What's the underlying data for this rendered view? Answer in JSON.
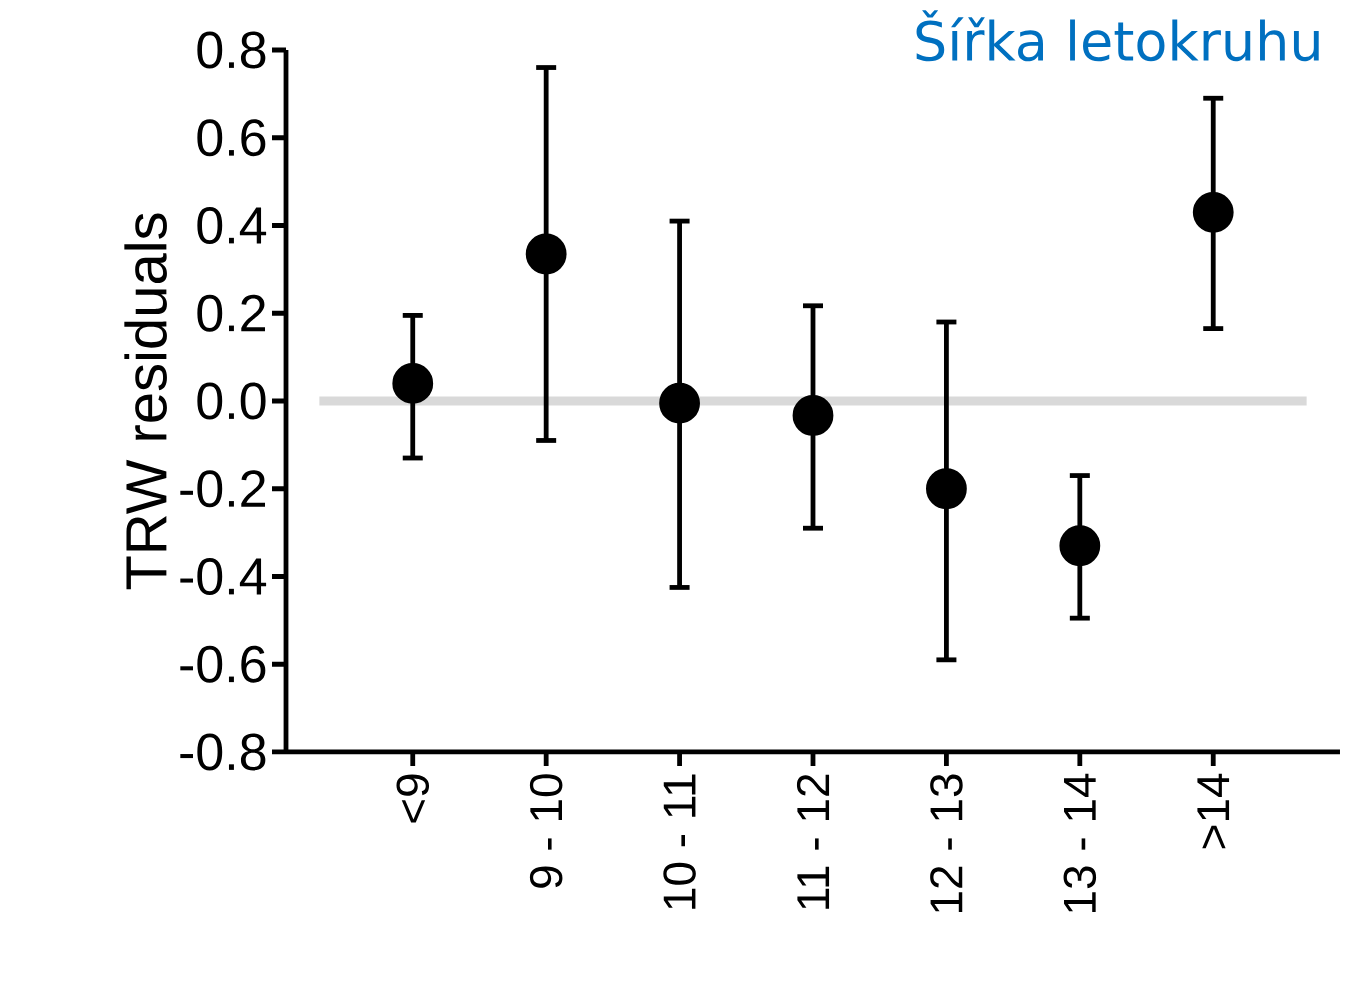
{
  "chart_data": {
    "type": "scatter",
    "title": "Šířka letokruhu",
    "ylabel": "TRW residuals",
    "categories": [
      "<9",
      "9 - 10",
      "10 - 11",
      "11 - 12",
      "12 - 13",
      "13 - 14",
      ">14"
    ],
    "values": [
      0.04,
      0.335,
      -0.005,
      -0.033,
      -0.2,
      -0.33,
      0.43
    ],
    "errors": [
      [
        -0.13,
        0.195
      ],
      [
        -0.09,
        0.76
      ],
      [
        -0.425,
        0.41
      ],
      [
        -0.29,
        0.217
      ],
      [
        -0.59,
        0.18
      ],
      [
        -0.495,
        -0.17
      ],
      [
        0.165,
        0.69
      ]
    ],
    "color": "#000000",
    "marker": "circle",
    "ylim": [
      -0.8,
      0.8
    ],
    "yticks": [
      {
        "value": -0.8,
        "label": "-0.8"
      },
      {
        "value": -0.6,
        "label": "-0.6"
      },
      {
        "value": -0.4,
        "label": "-0.4"
      },
      {
        "value": -0.2,
        "label": "-0.2"
      },
      {
        "value": 0,
        "label": "0.0"
      },
      {
        "value": 0.2,
        "label": "0.2"
      },
      {
        "value": 0.4,
        "label": "0.4"
      },
      {
        "value": 0.6,
        "label": "0.6"
      },
      {
        "value": 0.8,
        "label": "0.8"
      }
    ],
    "ref_lines": [
      {
        "axis": "y",
        "value": 0,
        "color": "#d9d9d9"
      }
    ]
  }
}
